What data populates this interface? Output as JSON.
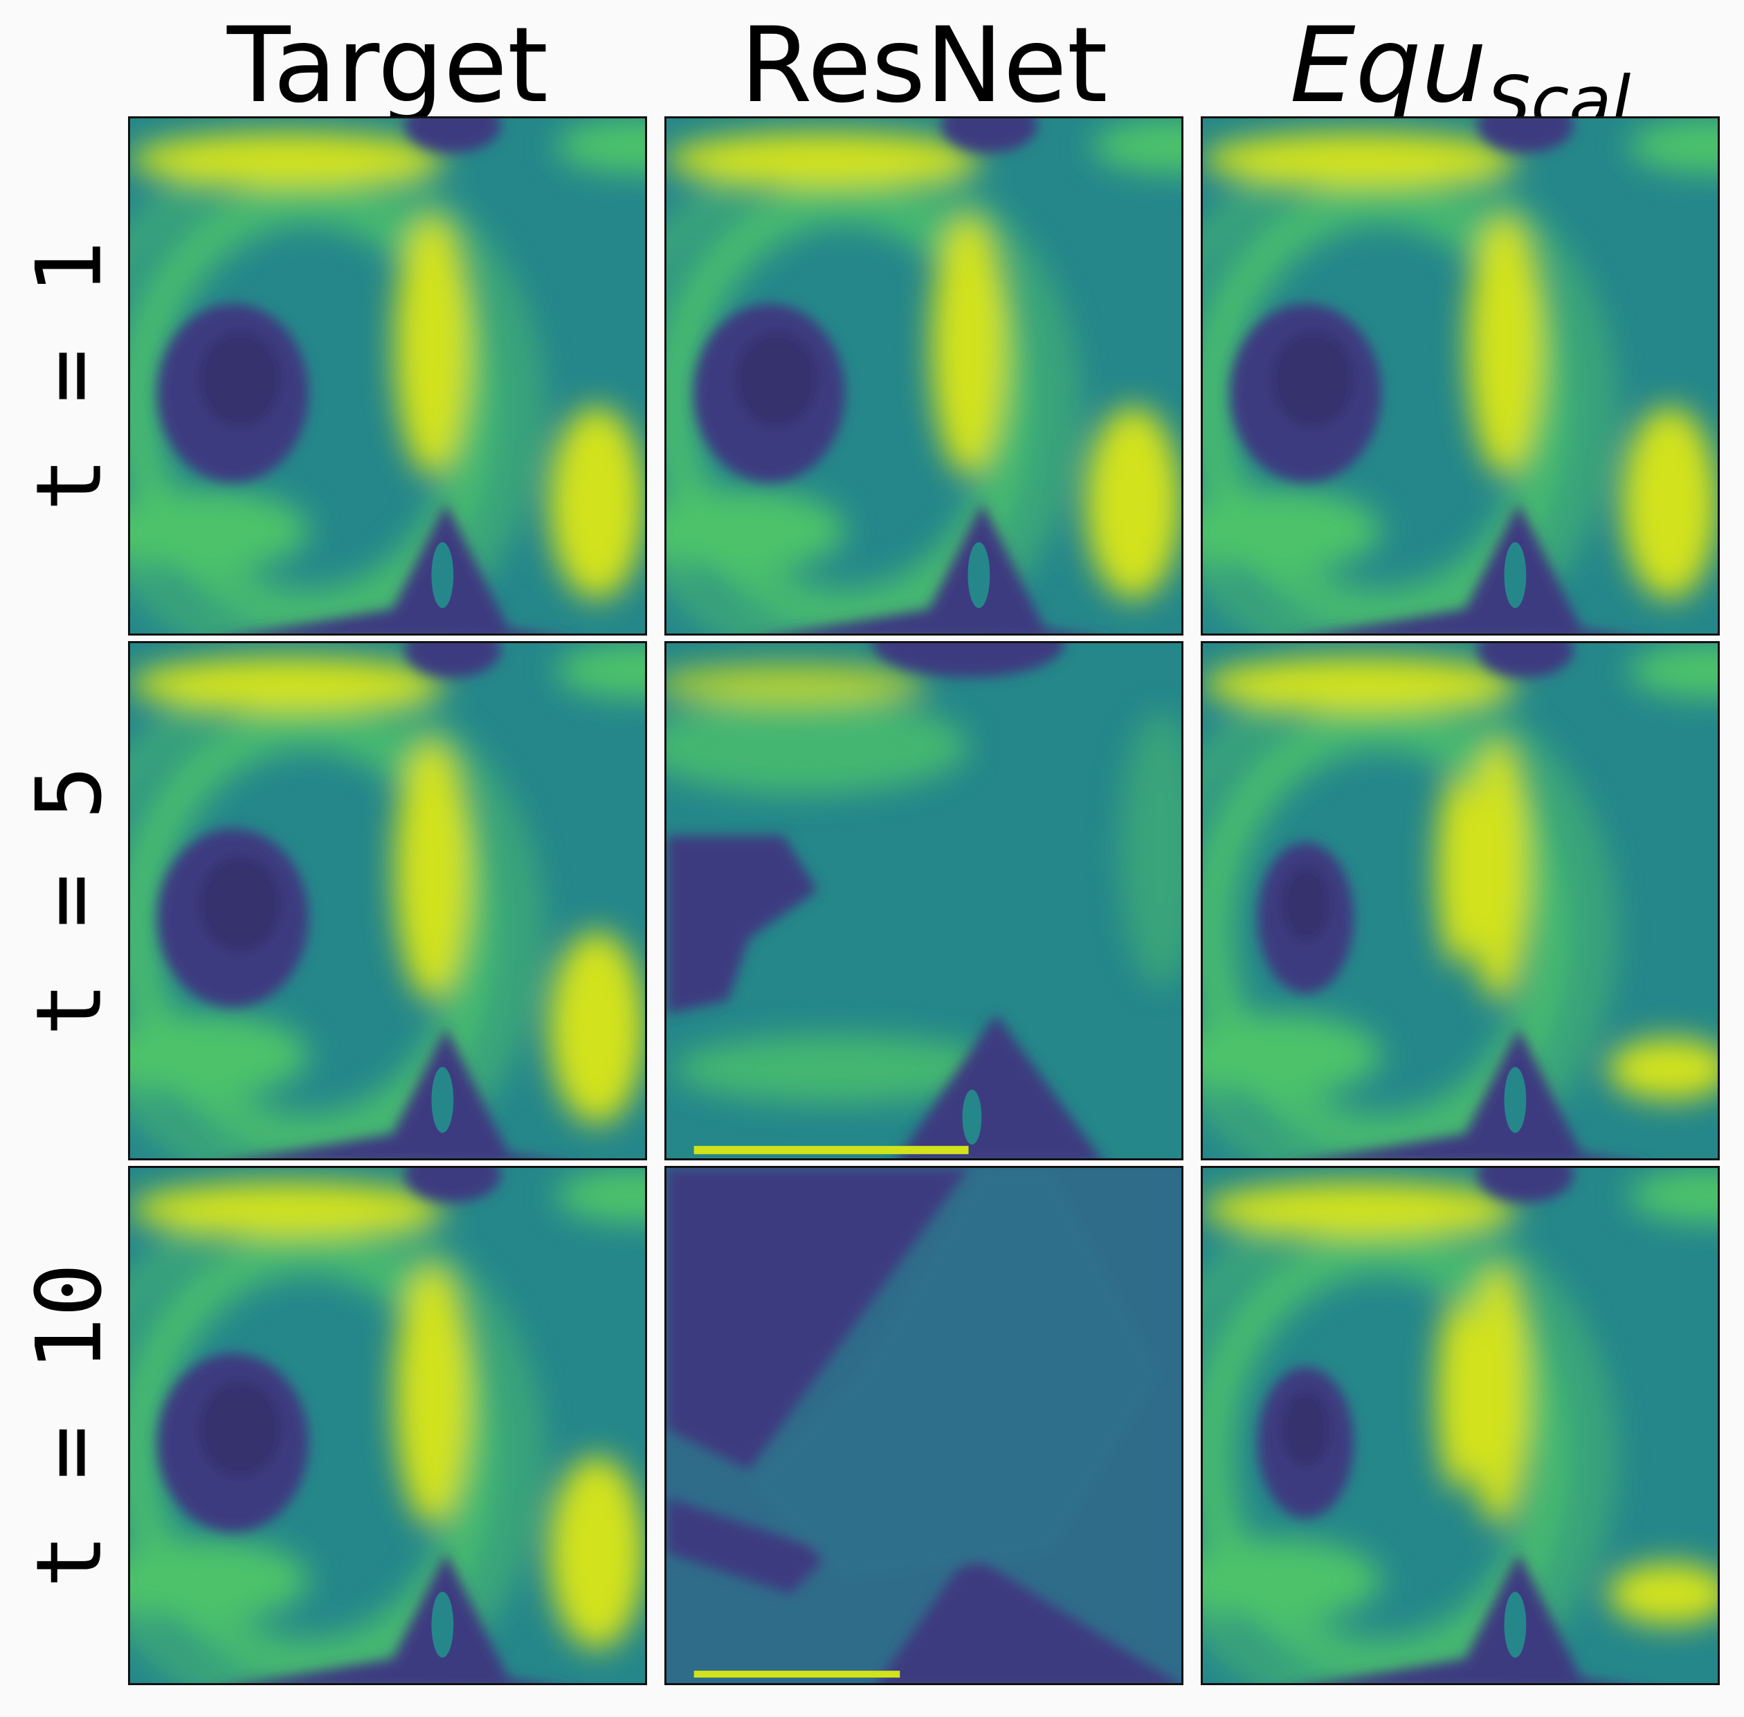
{
  "columns": [
    {
      "label": "Target",
      "italic": false
    },
    {
      "label": "ResNet",
      "italic": false
    },
    {
      "label": "Equ",
      "sub": "Scal",
      "italic": true
    }
  ],
  "rows": [
    {
      "label": "t = 1"
    },
    {
      "label": "t = 5"
    },
    {
      "label": "t = 10"
    }
  ],
  "colormap": {
    "name": "viridis",
    "dark": "#3e3a80",
    "mid": "#25878a",
    "green": "#4ec26b",
    "bright": "#d2e21b"
  },
  "panels": [
    {
      "row": 0,
      "col": 0,
      "style": "vortex"
    },
    {
      "row": 0,
      "col": 1,
      "style": "vortex"
    },
    {
      "row": 0,
      "col": 2,
      "style": "vortex"
    },
    {
      "row": 1,
      "col": 0,
      "style": "vortex"
    },
    {
      "row": 1,
      "col": 1,
      "style": "degraded"
    },
    {
      "row": 1,
      "col": 2,
      "style": "vortex-shifted"
    },
    {
      "row": 2,
      "col": 0,
      "style": "vortex"
    },
    {
      "row": 2,
      "col": 1,
      "style": "collapsed"
    },
    {
      "row": 2,
      "col": 2,
      "style": "vortex-shifted"
    }
  ]
}
